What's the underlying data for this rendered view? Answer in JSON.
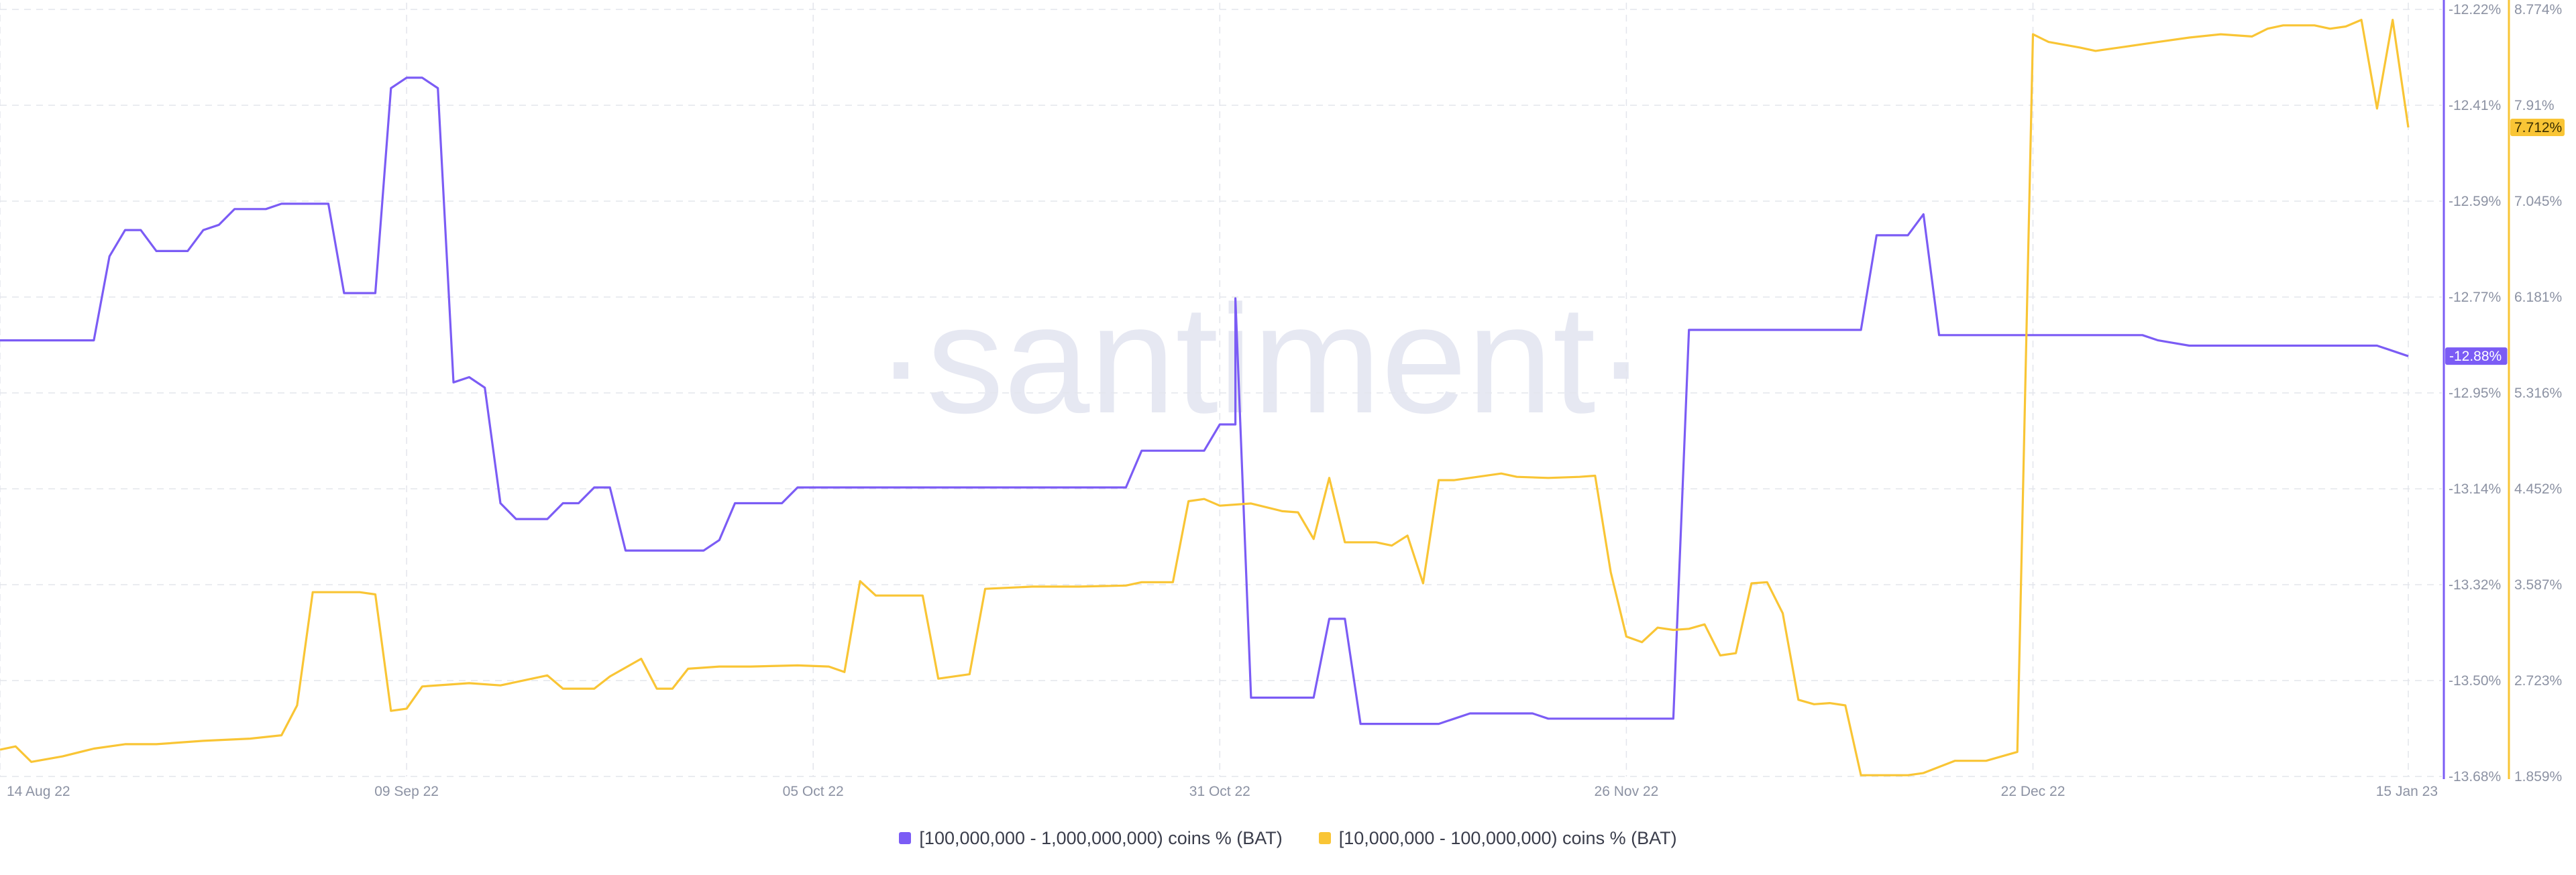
{
  "watermark": "·santiment·",
  "colors": {
    "series1": "#7b5cf5",
    "series2": "#f9c535",
    "grid": "#e3e5ec",
    "axis_text": "#8c92a3",
    "watermark": "#e6e8f2"
  },
  "chart_data": {
    "type": "line",
    "x_range": [
      "2022-08-14",
      "2023-01-15"
    ],
    "x_ticks": [
      "14 Aug 22",
      "09 Sep 22",
      "05 Oct 22",
      "31 Oct 22",
      "26 Nov 22",
      "22 Dec 22",
      "15 Jan 23"
    ],
    "x_tick_dates": [
      "2022-08-14",
      "2022-09-09",
      "2022-10-05",
      "2022-10-31",
      "2022-11-26",
      "2022-12-22",
      "2023-01-15"
    ],
    "grid": true,
    "legend_position": "bottom",
    "y_left": {
      "series": "[100,000,000 - 1,000,000,000) coins % (BAT)",
      "min": -13.68,
      "max": -12.22,
      "ticks": [
        "-12.22%",
        "-12.41%",
        "-12.59%",
        "-12.77%",
        "-12.95%",
        "-13.14%",
        "-13.32%",
        "-13.50%",
        "-13.68%"
      ],
      "current_label": "-12.88%"
    },
    "y_right": {
      "series": "[10,000,000 - 100,000,000) coins % (BAT)",
      "min": 1.859,
      "max": 8.774,
      "ticks": [
        "8.774%",
        "7.91%",
        "7.045%",
        "6.181%",
        "5.316%",
        "4.452%",
        "3.587%",
        "2.723%",
        "1.859%"
      ],
      "current_label": "7.712%"
    },
    "series": [
      {
        "name": "[100,000,000 - 1,000,000,000) coins % (BAT)",
        "axis": "left",
        "color": "#7b5cf5",
        "points": [
          [
            "2022-08-14",
            -12.85
          ],
          [
            "2022-08-20",
            -12.85
          ],
          [
            "2022-08-21",
            -12.69
          ],
          [
            "2022-08-22",
            -12.64
          ],
          [
            "2022-08-23",
            -12.64
          ],
          [
            "2022-08-24",
            -12.68
          ],
          [
            "2022-08-26",
            -12.68
          ],
          [
            "2022-08-27",
            -12.64
          ],
          [
            "2022-08-28",
            -12.63
          ],
          [
            "2022-08-29",
            -12.6
          ],
          [
            "2022-08-30",
            -12.6
          ],
          [
            "2022-08-31",
            -12.6
          ],
          [
            "2022-09-01",
            -12.59
          ],
          [
            "2022-09-04",
            -12.59
          ],
          [
            "2022-09-05",
            -12.76
          ],
          [
            "2022-09-06",
            -12.76
          ],
          [
            "2022-09-07",
            -12.76
          ],
          [
            "2022-09-08",
            -12.37
          ],
          [
            "2022-09-09",
            -12.35
          ],
          [
            "2022-09-10",
            -12.35
          ],
          [
            "2022-09-11",
            -12.37
          ],
          [
            "2022-09-12",
            -12.93
          ],
          [
            "2022-09-13",
            -12.92
          ],
          [
            "2022-09-14",
            -12.94
          ],
          [
            "2022-09-15",
            -13.16
          ],
          [
            "2022-09-16",
            -13.19
          ],
          [
            "2022-09-17",
            -13.19
          ],
          [
            "2022-09-18",
            -13.19
          ],
          [
            "2022-09-19",
            -13.16
          ],
          [
            "2022-09-20",
            -13.16
          ],
          [
            "2022-09-21",
            -13.13
          ],
          [
            "2022-09-22",
            -13.13
          ],
          [
            "2022-09-23",
            -13.25
          ],
          [
            "2022-09-28",
            -13.25
          ],
          [
            "2022-09-29",
            -13.23
          ],
          [
            "2022-09-30",
            -13.16
          ],
          [
            "2022-10-03",
            -13.16
          ],
          [
            "2022-10-04",
            -13.13
          ],
          [
            "2022-10-10",
            -13.13
          ],
          [
            "2022-10-15",
            -13.13
          ],
          [
            "2022-10-20",
            -13.13
          ],
          [
            "2022-10-25",
            -13.13
          ],
          [
            "2022-10-26",
            -13.06
          ],
          [
            "2022-10-30",
            -13.06
          ],
          [
            "2022-10-31",
            -13.01
          ],
          [
            "2022-11-01",
            -13.01
          ],
          [
            "2022-11-01",
            -12.77
          ],
          [
            "2022-11-02",
            -13.53
          ],
          [
            "2022-11-06",
            -13.53
          ],
          [
            "2022-11-07",
            -13.38
          ],
          [
            "2022-11-08",
            -13.38
          ],
          [
            "2022-11-09",
            -13.58
          ],
          [
            "2022-11-14",
            -13.58
          ],
          [
            "2022-11-15",
            -13.57
          ],
          [
            "2022-11-16",
            -13.56
          ],
          [
            "2022-11-20",
            -13.56
          ],
          [
            "2022-11-21",
            -13.57
          ],
          [
            "2022-11-29",
            -13.57
          ],
          [
            "2022-11-30",
            -12.83
          ],
          [
            "2022-12-01",
            -12.83
          ],
          [
            "2022-12-11",
            -12.83
          ],
          [
            "2022-12-12",
            -12.65
          ],
          [
            "2022-12-14",
            -12.65
          ],
          [
            "2022-12-15",
            -12.61
          ],
          [
            "2022-12-16",
            -12.84
          ],
          [
            "2022-12-20",
            -12.84
          ],
          [
            "2022-12-25",
            -12.84
          ],
          [
            "2022-12-29",
            -12.84
          ],
          [
            "2022-12-30",
            -12.85
          ],
          [
            "2023-01-01",
            -12.86
          ],
          [
            "2023-01-04",
            -12.86
          ],
          [
            "2023-01-07",
            -12.86
          ],
          [
            "2023-01-12",
            -12.86
          ],
          [
            "2023-01-13",
            -12.86
          ],
          [
            "2023-01-14",
            -12.87
          ],
          [
            "2023-01-15",
            -12.88
          ]
        ]
      },
      {
        "name": "[10,000,000 - 100,000,000) coins % (BAT)",
        "axis": "right",
        "color": "#f9c535",
        "points": [
          [
            "2022-08-14",
            2.1
          ],
          [
            "2022-08-15",
            2.13
          ],
          [
            "2022-08-16",
            1.99
          ],
          [
            "2022-08-18",
            2.04
          ],
          [
            "2022-08-20",
            2.11
          ],
          [
            "2022-08-22",
            2.15
          ],
          [
            "2022-08-24",
            2.15
          ],
          [
            "2022-08-27",
            2.18
          ],
          [
            "2022-08-30",
            2.2
          ],
          [
            "2022-09-01",
            2.23
          ],
          [
            "2022-09-02",
            2.5
          ],
          [
            "2022-09-03",
            3.52
          ],
          [
            "2022-09-06",
            3.52
          ],
          [
            "2022-09-07",
            3.5
          ],
          [
            "2022-09-08",
            2.45
          ],
          [
            "2022-09-09",
            2.47
          ],
          [
            "2022-09-10",
            2.67
          ],
          [
            "2022-09-13",
            2.7
          ],
          [
            "2022-09-15",
            2.68
          ],
          [
            "2022-09-18",
            2.77
          ],
          [
            "2022-09-19",
            2.65
          ],
          [
            "2022-09-21",
            2.65
          ],
          [
            "2022-09-22",
            2.76
          ],
          [
            "2022-09-24",
            2.92
          ],
          [
            "2022-09-25",
            2.65
          ],
          [
            "2022-09-26",
            2.65
          ],
          [
            "2022-09-27",
            2.83
          ],
          [
            "2022-09-29",
            2.85
          ],
          [
            "2022-10-01",
            2.85
          ],
          [
            "2022-10-04",
            2.86
          ],
          [
            "2022-10-06",
            2.85
          ],
          [
            "2022-10-07",
            2.8
          ],
          [
            "2022-10-08",
            3.62
          ],
          [
            "2022-10-09",
            3.49
          ],
          [
            "2022-10-12",
            3.49
          ],
          [
            "2022-10-13",
            2.74
          ],
          [
            "2022-10-15",
            2.78
          ],
          [
            "2022-10-16",
            3.55
          ],
          [
            "2022-10-19",
            3.57
          ],
          [
            "2022-10-22",
            3.57
          ],
          [
            "2022-10-25",
            3.58
          ],
          [
            "2022-10-26",
            3.61
          ],
          [
            "2022-10-28",
            3.61
          ],
          [
            "2022-10-29",
            4.34
          ],
          [
            "2022-10-30",
            4.36
          ],
          [
            "2022-10-31",
            4.3
          ],
          [
            "2022-11-02",
            4.32
          ],
          [
            "2022-11-04",
            4.25
          ],
          [
            "2022-11-05",
            4.24
          ],
          [
            "2022-11-06",
            4.0
          ],
          [
            "2022-11-07",
            4.55
          ],
          [
            "2022-11-08",
            3.97
          ],
          [
            "2022-11-10",
            3.97
          ],
          [
            "2022-11-11",
            3.94
          ],
          [
            "2022-11-12",
            4.03
          ],
          [
            "2022-11-13",
            3.6
          ],
          [
            "2022-11-14",
            4.53
          ],
          [
            "2022-11-15",
            4.53
          ],
          [
            "2022-11-18",
            4.59
          ],
          [
            "2022-11-19",
            4.56
          ],
          [
            "2022-11-21",
            4.55
          ],
          [
            "2022-11-23",
            4.56
          ],
          [
            "2022-11-24",
            4.57
          ],
          [
            "2022-11-25",
            3.7
          ],
          [
            "2022-11-26",
            3.12
          ],
          [
            "2022-11-27",
            3.07
          ],
          [
            "2022-11-28",
            3.2
          ],
          [
            "2022-11-29",
            3.18
          ],
          [
            "2022-11-30",
            3.19
          ],
          [
            "2022-12-01",
            3.23
          ],
          [
            "2022-12-02",
            2.95
          ],
          [
            "2022-12-03",
            2.97
          ],
          [
            "2022-12-04",
            3.6
          ],
          [
            "2022-12-05",
            3.61
          ],
          [
            "2022-12-06",
            3.33
          ],
          [
            "2022-12-07",
            2.55
          ],
          [
            "2022-12-08",
            2.51
          ],
          [
            "2022-12-09",
            2.52
          ],
          [
            "2022-12-10",
            2.5
          ],
          [
            "2022-12-11",
            1.87
          ],
          [
            "2022-12-14",
            1.87
          ],
          [
            "2022-12-15",
            1.89
          ],
          [
            "2022-12-17",
            2.0
          ],
          [
            "2022-12-19",
            2.0
          ],
          [
            "2022-12-20",
            2.04
          ],
          [
            "2022-12-21",
            2.08
          ],
          [
            "2022-12-22",
            8.55
          ],
          [
            "2022-12-23",
            8.48
          ],
          [
            "2022-12-25",
            8.43
          ],
          [
            "2022-12-26",
            8.4
          ],
          [
            "2022-12-28",
            8.44
          ],
          [
            "2022-12-30",
            8.48
          ],
          [
            "2023-01-01",
            8.52
          ],
          [
            "2023-01-03",
            8.55
          ],
          [
            "2023-01-05",
            8.53
          ],
          [
            "2023-01-06",
            8.6
          ],
          [
            "2023-01-07",
            8.63
          ],
          [
            "2023-01-09",
            8.63
          ],
          [
            "2023-01-10",
            8.6
          ],
          [
            "2023-01-11",
            8.62
          ],
          [
            "2023-01-12",
            8.68
          ],
          [
            "2023-01-13",
            7.88
          ],
          [
            "2023-01-14",
            8.68
          ],
          [
            "2023-01-15",
            7.71
          ]
        ]
      }
    ]
  }
}
